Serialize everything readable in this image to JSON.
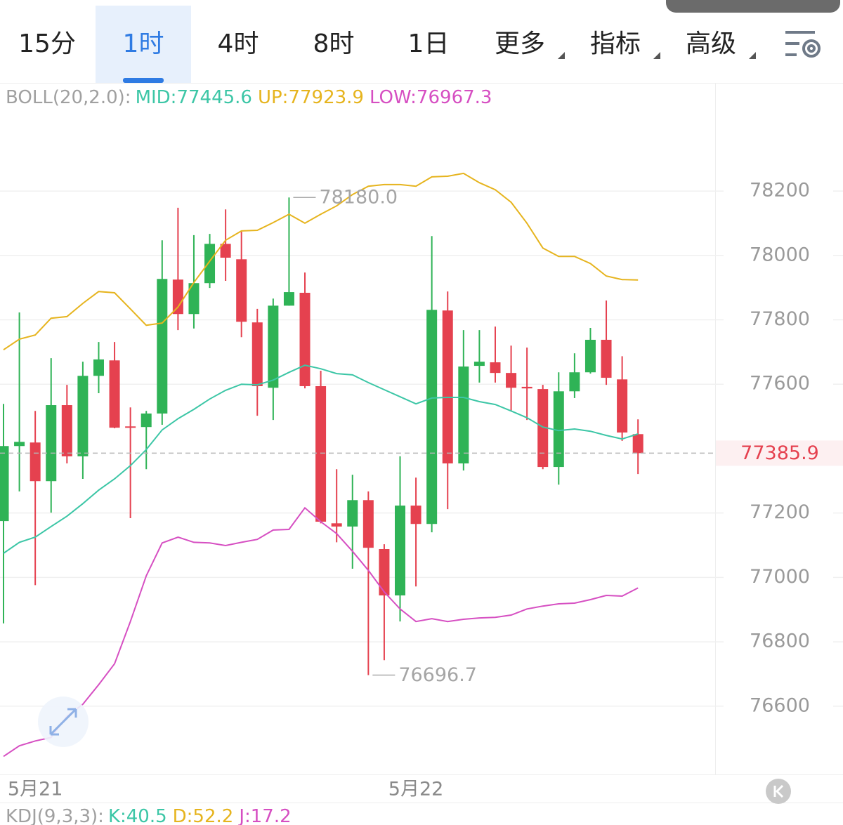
{
  "tabs": [
    "15分",
    "1时",
    "4时",
    "8时",
    "1日",
    "更多",
    "指标",
    "高级"
  ],
  "active_tab": 1,
  "chart_data": {
    "type": "candlestick",
    "indicator_label": {
      "name": "BOLL(20,2.0):",
      "mid": "MID:77445.6",
      "up": "UP:77923.9",
      "low": "LOW:76967.3"
    },
    "categories": [
      null,
      null,
      "5月21",
      null,
      null,
      null,
      null,
      null,
      null,
      null,
      null,
      null,
      null,
      null,
      null,
      null,
      null,
      null,
      null,
      null,
      null,
      null,
      null,
      null,
      null,
      null,
      "5月22",
      null,
      null,
      null,
      null,
      null,
      null,
      null,
      null,
      null,
      null,
      null,
      null,
      null,
      null
    ],
    "open": [
      77175,
      77408,
      77419,
      77299,
      77535,
      77376,
      77626,
      77674,
      77469,
      77467,
      77509,
      77925,
      77818,
      77914,
      78036,
      77988,
      77792,
      77589,
      77844,
      77884,
      77594,
      77168,
      77158,
      77240,
      77088,
      76944,
      77223,
      77166,
      77829,
      77354,
      77657,
      77668,
      77635,
      77592,
      77585,
      77343,
      77578,
      77637,
      77738,
      77615,
      77445
    ],
    "high": [
      77539,
      77823,
      77517,
      77681,
      77598,
      77670,
      77731,
      77731,
      77528,
      77517,
      78047,
      78148,
      78063,
      78067,
      78143,
      78074,
      77834,
      77866,
      78180,
      77947,
      77642,
      77336,
      77319,
      77267,
      77103,
      77376,
      77310,
      78060,
      77888,
      77768,
      77768,
      77779,
      77720,
      77714,
      77598,
      77637,
      77696,
      77775,
      77860,
      77687,
      77491
    ],
    "low": [
      76857,
      77267,
      76976,
      77201,
      77354,
      77306,
      77572,
      77463,
      77184,
      77336,
      77474,
      77768,
      77773,
      77899,
      77921,
      77746,
      77502,
      77489,
      77844,
      77587,
      77168,
      77109,
      77027,
      76696.7,
      76743,
      76863,
      76972,
      77140,
      77212,
      77332,
      77605,
      77605,
      77517,
      77489,
      77336,
      77288,
      77557,
      77633,
      77598,
      77424,
      77321
    ],
    "close": [
      77408,
      77421,
      77299,
      77535,
      77376,
      77626,
      77677,
      77465,
      77465,
      77509,
      77927,
      77818,
      77914,
      78036,
      77993,
      77794,
      77594,
      77844,
      77886,
      77594,
      77173,
      77158,
      77240,
      77092,
      76944,
      77223,
      77166,
      77831,
      77354,
      77655,
      77670,
      77635,
      77589,
      77587,
      77343,
      77578,
      77637,
      77738,
      77620,
      77450,
      77385.9
    ],
    "up_color": "#2fb356",
    "down_color": "#e5414f",
    "series": [
      {
        "name": "UP",
        "color": "#e6b41e",
        "values": [
          77707,
          77740,
          77753,
          77805,
          77810,
          77851,
          77888,
          77884,
          77834,
          77783,
          77790,
          77840,
          77916,
          77982,
          78047,
          78076,
          78078,
          78102,
          78128,
          78100,
          78128,
          78154,
          78189,
          78215,
          78220,
          78220,
          78215,
          78244,
          78246,
          78255,
          78226,
          78204,
          78165,
          78100,
          78023,
          77997,
          77997,
          77975,
          77936,
          77925,
          77923.9
        ]
      },
      {
        "name": "MID",
        "color": "#3cc6a6",
        "values": [
          77075,
          77109,
          77125,
          77158,
          77190,
          77229,
          77271,
          77306,
          77347,
          77397,
          77458,
          77493,
          77522,
          77554,
          77581,
          77600,
          77598,
          77613,
          77637,
          77659,
          77648,
          77633,
          77629,
          77605,
          77583,
          77561,
          77539,
          77557,
          77559,
          77559,
          77546,
          77537,
          77517,
          77496,
          77467,
          77456,
          77461,
          77454,
          77441,
          77430,
          77445.6
        ]
      },
      {
        "name": "LOW",
        "color": "#d64fc2",
        "values": [
          76444,
          76477,
          76492,
          76503,
          76569,
          76606,
          76667,
          76732,
          76863,
          77005,
          77107,
          77125,
          77109,
          77107,
          77099,
          77109,
          77118,
          77147,
          77149,
          77216,
          77173,
          77136,
          77081,
          77022,
          76955,
          76902,
          76863,
          76872,
          76863,
          76870,
          76874,
          76876,
          76883,
          76902,
          76911,
          76918,
          76920,
          76931,
          76944,
          76942,
          76967.3
        ]
      }
    ],
    "ylim": [
      76388,
      78536
    ],
    "yticks": [
      76600,
      76800,
      77000,
      77200,
      77600,
      77800,
      78000,
      78200
    ],
    "grid": true,
    "current_price": 77385.9,
    "annotations": [
      {
        "value": 78180,
        "label": "78180.0"
      },
      {
        "value": 76696.7,
        "label": "76696.7"
      }
    ]
  },
  "kdj": {
    "name": "KDJ(9,3,3):",
    "k": "K:40.5",
    "d": "D:52.2",
    "j": "J:17.2"
  }
}
